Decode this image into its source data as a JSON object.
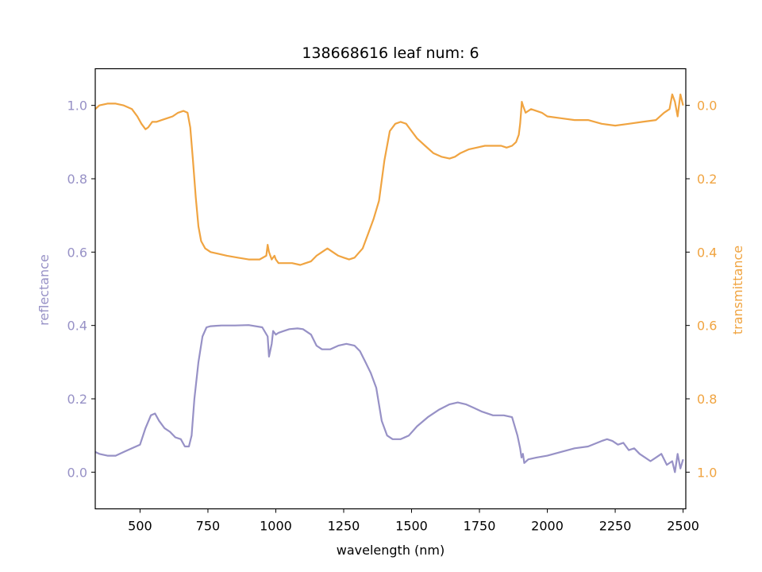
{
  "chart_data": {
    "type": "line",
    "title": "138668616 leaf num: 6",
    "xlabel": "wavelength (nm)",
    "xlim": [
      335,
      2510
    ],
    "xticks": [
      500,
      750,
      1000,
      1250,
      1500,
      1750,
      2000,
      2250,
      2500
    ],
    "grid": false,
    "left_axis": {
      "label": "reflectance",
      "color": "#9791C6",
      "lim": [
        -0.1,
        1.1
      ],
      "ticks": [
        0.0,
        0.2,
        0.4,
        0.6,
        0.8,
        1.0
      ],
      "tick_labels": [
        "0.0",
        "0.2",
        "0.4",
        "0.6",
        "0.8",
        "1.0"
      ]
    },
    "right_axis": {
      "label": "transmittance",
      "color": "#F0A441",
      "lim": [
        1.1,
        -0.1
      ],
      "inverted": true,
      "ticks": [
        0.0,
        0.2,
        0.4,
        0.6,
        0.8,
        1.0
      ],
      "tick_labels": [
        "0.0",
        "0.2",
        "0.4",
        "0.6",
        "0.8",
        "1.0"
      ]
    },
    "series": [
      {
        "axis": "left",
        "color": "#9791C6",
        "x": [
          335,
          350,
          380,
          410,
          440,
          470,
          500,
          520,
          540,
          555,
          570,
          590,
          610,
          630,
          650,
          665,
          680,
          690,
          700,
          715,
          730,
          745,
          760,
          780,
          800,
          850,
          900,
          950,
          970,
          975,
          985,
          990,
          1000,
          1010,
          1030,
          1050,
          1080,
          1100,
          1130,
          1150,
          1170,
          1200,
          1230,
          1260,
          1290,
          1310,
          1330,
          1350,
          1370,
          1390,
          1410,
          1430,
          1460,
          1490,
          1520,
          1560,
          1600,
          1640,
          1670,
          1700,
          1730,
          1760,
          1800,
          1840,
          1870,
          1890,
          1900,
          1905,
          1910,
          1915,
          1930,
          1960,
          2000,
          2050,
          2100,
          2150,
          2200,
          2220,
          2240,
          2260,
          2280,
          2300,
          2320,
          2340,
          2360,
          2380,
          2400,
          2420,
          2440,
          2460,
          2470,
          2480,
          2490,
          2500
        ],
        "y": [
          0.055,
          0.05,
          0.045,
          0.045,
          0.055,
          0.065,
          0.075,
          0.12,
          0.155,
          0.16,
          0.14,
          0.12,
          0.11,
          0.095,
          0.09,
          0.07,
          0.07,
          0.1,
          0.2,
          0.3,
          0.37,
          0.395,
          0.398,
          0.399,
          0.4,
          0.4,
          0.401,
          0.395,
          0.37,
          0.315,
          0.35,
          0.385,
          0.375,
          0.38,
          0.385,
          0.39,
          0.392,
          0.39,
          0.375,
          0.345,
          0.335,
          0.335,
          0.345,
          0.35,
          0.345,
          0.33,
          0.3,
          0.27,
          0.23,
          0.14,
          0.1,
          0.09,
          0.09,
          0.1,
          0.125,
          0.15,
          0.17,
          0.185,
          0.19,
          0.185,
          0.175,
          0.165,
          0.155,
          0.155,
          0.15,
          0.1,
          0.065,
          0.04,
          0.05,
          0.025,
          0.035,
          0.04,
          0.045,
          0.055,
          0.065,
          0.07,
          0.085,
          0.09,
          0.085,
          0.075,
          0.08,
          0.06,
          0.065,
          0.05,
          0.04,
          0.03,
          0.04,
          0.05,
          0.02,
          0.03,
          0.0,
          0.05,
          0.01,
          0.035
        ]
      },
      {
        "axis": "right",
        "color": "#F0A441",
        "x": [
          335,
          350,
          380,
          410,
          440,
          470,
          490,
          505,
          520,
          530,
          545,
          560,
          580,
          600,
          620,
          640,
          660,
          675,
          685,
          695,
          705,
          715,
          725,
          740,
          760,
          790,
          820,
          860,
          900,
          940,
          965,
          970,
          975,
          985,
          995,
          1000,
          1010,
          1030,
          1060,
          1090,
          1110,
          1130,
          1150,
          1170,
          1190,
          1210,
          1230,
          1250,
          1270,
          1290,
          1320,
          1340,
          1360,
          1380,
          1400,
          1420,
          1440,
          1460,
          1480,
          1500,
          1520,
          1550,
          1580,
          1610,
          1640,
          1660,
          1680,
          1710,
          1740,
          1770,
          1800,
          1830,
          1850,
          1870,
          1885,
          1895,
          1900,
          1903,
          1906,
          1910,
          1920,
          1940,
          1980,
          2000,
          2050,
          2100,
          2150,
          2200,
          2250,
          2300,
          2350,
          2400,
          2430,
          2450,
          2460,
          2470,
          2480,
          2490,
          2500
        ],
        "y": [
          0.01,
          0.0,
          -0.005,
          -0.005,
          0.0,
          0.01,
          0.03,
          0.05,
          0.065,
          0.06,
          0.045,
          0.045,
          0.04,
          0.035,
          0.03,
          0.02,
          0.015,
          0.02,
          0.06,
          0.15,
          0.25,
          0.33,
          0.37,
          0.39,
          0.4,
          0.405,
          0.41,
          0.415,
          0.42,
          0.42,
          0.41,
          0.38,
          0.4,
          0.42,
          0.41,
          0.42,
          0.43,
          0.43,
          0.43,
          0.435,
          0.43,
          0.425,
          0.41,
          0.4,
          0.39,
          0.4,
          0.41,
          0.415,
          0.42,
          0.415,
          0.39,
          0.35,
          0.31,
          0.26,
          0.15,
          0.07,
          0.05,
          0.045,
          0.05,
          0.07,
          0.09,
          0.11,
          0.13,
          0.14,
          0.145,
          0.14,
          0.13,
          0.12,
          0.115,
          0.11,
          0.11,
          0.11,
          0.115,
          0.11,
          0.1,
          0.08,
          0.05,
          0.02,
          -0.01,
          0.0,
          0.02,
          0.01,
          0.02,
          0.03,
          0.035,
          0.04,
          0.04,
          0.05,
          0.055,
          0.05,
          0.045,
          0.04,
          0.02,
          0.01,
          -0.03,
          -0.01,
          0.03,
          -0.03,
          0.0
        ]
      }
    ]
  }
}
